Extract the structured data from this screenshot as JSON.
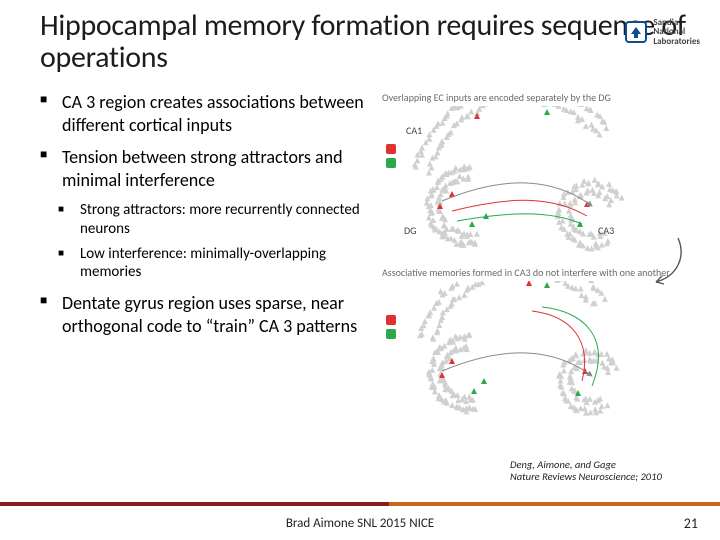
{
  "title": "Hippocampal memory formation requires sequence of operations",
  "logo_text": "Sandia\nNational\nLaboratories",
  "bullets": {
    "b1": "CA 3 region creates associations between different cortical inputs",
    "b2": "Tension between strong attractors and minimal interference",
    "s1": "Strong attractors: more recurrently connected neurons",
    "s2": "Low interference: minimally-overlapping memories",
    "b3": "Dentate gyrus region uses sparse, near orthogonal code to “train” CA 3 patterns"
  },
  "diagram": {
    "caption1": "Overlapping EC inputs are encoded separately by the DG",
    "caption2": "Associative memories formed in CA3 do not interfere with one another",
    "labels": {
      "ca1": "CA1",
      "dg": "DG",
      "ca3": "CA3"
    },
    "colors": {
      "neuron_off": "#d0d0d0",
      "neuron_on_a": "#e03030",
      "neuron_on_b": "#2aa84a",
      "arrow": "#8a8a8a"
    }
  },
  "citation_l1": "Deng, Aimone, and Gage",
  "citation_l2": "Nature Reviews Neuroscience; 2010",
  "footer": "Brad Aimone SNL 2015 NICE",
  "page": "21",
  "accent": {
    "bar_top": "#c8651a",
    "bar_inner": "#8b1a1a"
  }
}
